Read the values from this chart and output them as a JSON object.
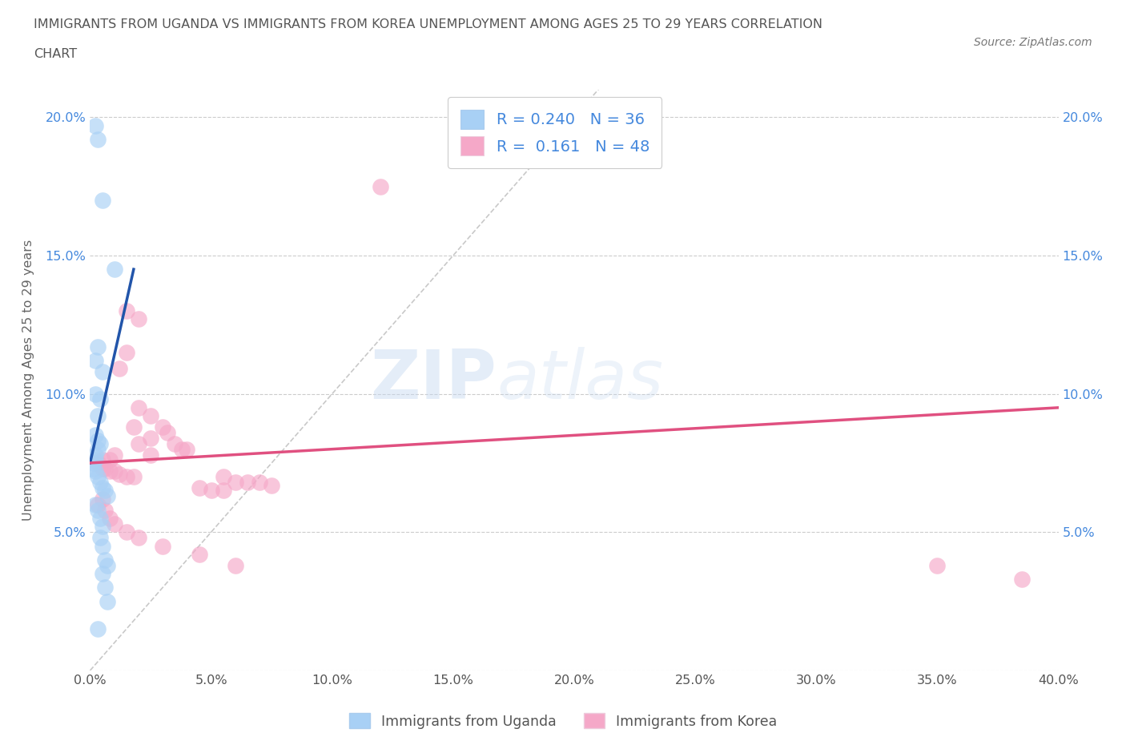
{
  "title_line1": "IMMIGRANTS FROM UGANDA VS IMMIGRANTS FROM KOREA UNEMPLOYMENT AMONG AGES 25 TO 29 YEARS CORRELATION",
  "title_line2": "CHART",
  "source": "Source: ZipAtlas.com",
  "ylabel": "Unemployment Among Ages 25 to 29 years",
  "R_uganda": 0.24,
  "N_uganda": 36,
  "R_korea": 0.161,
  "N_korea": 48,
  "color_uganda": "#A8D0F5",
  "color_korea": "#F5A8C8",
  "line_color_uganda": "#2255AA",
  "line_color_korea": "#E05080",
  "legend_label_color": "#4488DD",
  "tick_label_color": "#4488DD",
  "uganda_points": [
    [
      0.002,
      0.197
    ],
    [
      0.003,
      0.192
    ],
    [
      0.005,
      0.17
    ],
    [
      0.01,
      0.145
    ],
    [
      0.003,
      0.117
    ],
    [
      0.002,
      0.112
    ],
    [
      0.005,
      0.108
    ],
    [
      0.002,
      0.1
    ],
    [
      0.004,
      0.098
    ],
    [
      0.003,
      0.092
    ],
    [
      0.002,
      0.085
    ],
    [
      0.003,
      0.083
    ],
    [
      0.004,
      0.082
    ],
    [
      0.003,
      0.08
    ],
    [
      0.002,
      0.078
    ],
    [
      0.002,
      0.076
    ],
    [
      0.001,
      0.075
    ],
    [
      0.001,
      0.073
    ],
    [
      0.002,
      0.072
    ],
    [
      0.003,
      0.07
    ],
    [
      0.004,
      0.068
    ],
    [
      0.005,
      0.066
    ],
    [
      0.006,
      0.065
    ],
    [
      0.007,
      0.063
    ],
    [
      0.002,
      0.06
    ],
    [
      0.003,
      0.058
    ],
    [
      0.004,
      0.055
    ],
    [
      0.005,
      0.052
    ],
    [
      0.004,
      0.048
    ],
    [
      0.005,
      0.045
    ],
    [
      0.006,
      0.04
    ],
    [
      0.007,
      0.038
    ],
    [
      0.005,
      0.035
    ],
    [
      0.006,
      0.03
    ],
    [
      0.007,
      0.025
    ],
    [
      0.003,
      0.015
    ]
  ],
  "korea_points": [
    [
      0.12,
      0.175
    ],
    [
      0.015,
      0.13
    ],
    [
      0.02,
      0.127
    ],
    [
      0.015,
      0.115
    ],
    [
      0.012,
      0.109
    ],
    [
      0.02,
      0.095
    ],
    [
      0.025,
      0.092
    ],
    [
      0.018,
      0.088
    ],
    [
      0.03,
      0.088
    ],
    [
      0.032,
      0.086
    ],
    [
      0.025,
      0.084
    ],
    [
      0.02,
      0.082
    ],
    [
      0.035,
      0.082
    ],
    [
      0.038,
      0.08
    ],
    [
      0.04,
      0.08
    ],
    [
      0.025,
      0.078
    ],
    [
      0.01,
      0.078
    ],
    [
      0.008,
      0.076
    ],
    [
      0.005,
      0.076
    ],
    [
      0.003,
      0.075
    ],
    [
      0.004,
      0.074
    ],
    [
      0.006,
      0.073
    ],
    [
      0.005,
      0.073
    ],
    [
      0.008,
      0.072
    ],
    [
      0.01,
      0.072
    ],
    [
      0.012,
      0.071
    ],
    [
      0.015,
      0.07
    ],
    [
      0.018,
      0.07
    ],
    [
      0.055,
      0.07
    ],
    [
      0.06,
      0.068
    ],
    [
      0.065,
      0.068
    ],
    [
      0.07,
      0.068
    ],
    [
      0.075,
      0.067
    ],
    [
      0.045,
      0.066
    ],
    [
      0.05,
      0.065
    ],
    [
      0.055,
      0.065
    ],
    [
      0.005,
      0.062
    ],
    [
      0.003,
      0.06
    ],
    [
      0.006,
      0.058
    ],
    [
      0.008,
      0.055
    ],
    [
      0.01,
      0.053
    ],
    [
      0.015,
      0.05
    ],
    [
      0.02,
      0.048
    ],
    [
      0.03,
      0.045
    ],
    [
      0.045,
      0.042
    ],
    [
      0.06,
      0.038
    ],
    [
      0.35,
      0.038
    ],
    [
      0.385,
      0.033
    ]
  ],
  "xlim": [
    0.0,
    0.4
  ],
  "ylim": [
    0.0,
    0.21
  ],
  "xticks": [
    0.0,
    0.05,
    0.1,
    0.15,
    0.2,
    0.25,
    0.3,
    0.35,
    0.4
  ],
  "yticks": [
    0.0,
    0.05,
    0.1,
    0.15,
    0.2
  ],
  "blue_line_x": [
    0.0,
    0.018
  ],
  "blue_line_y": [
    0.075,
    0.145
  ],
  "pink_line_x": [
    0.0,
    0.4
  ],
  "pink_line_y": [
    0.075,
    0.095
  ],
  "diag_line_x": [
    0.0,
    0.21
  ],
  "diag_line_y": [
    0.0,
    0.21
  ]
}
